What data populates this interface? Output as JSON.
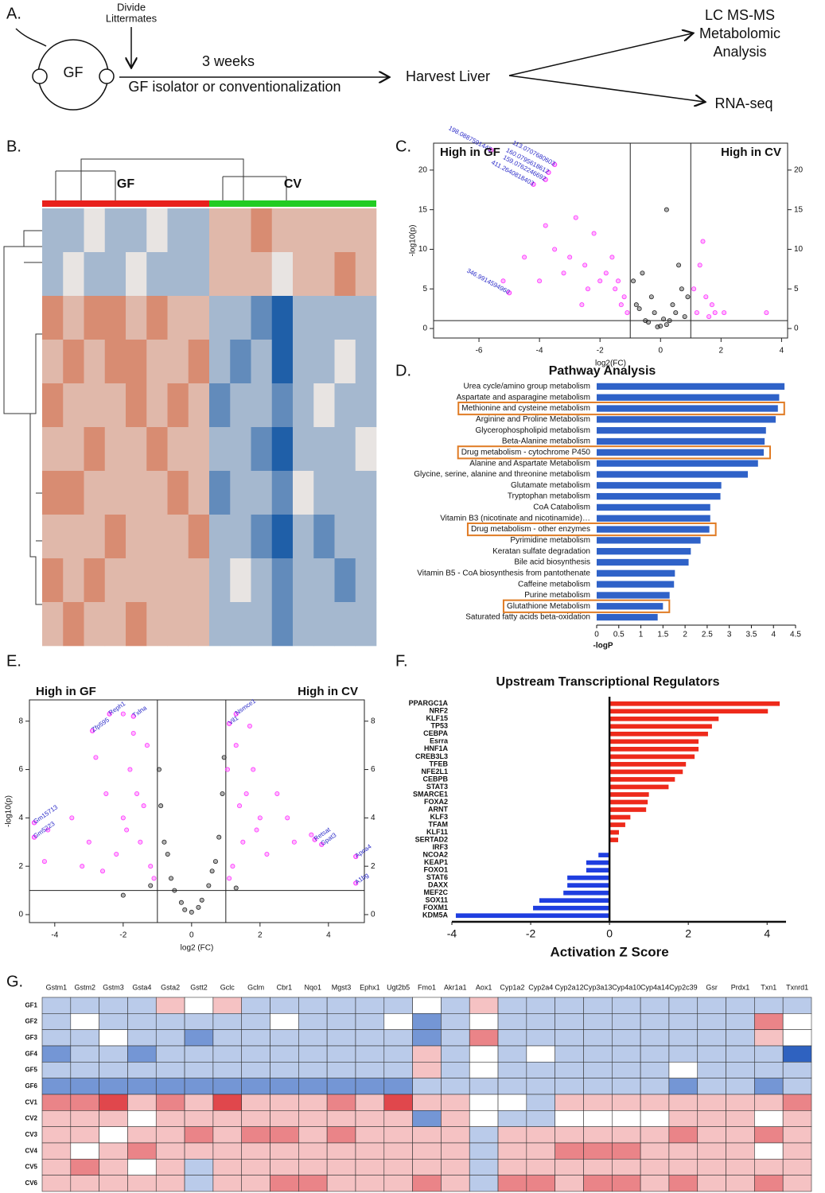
{
  "panel_labels": [
    "A.",
    "B.",
    "C.",
    "D.",
    "E.",
    "F.",
    "G."
  ],
  "diagram": {
    "divide": "Divide",
    "littermates": "Littermates",
    "mouse": "GF",
    "duration": "3 weeks",
    "treatment": "GF isolator or conventionalization",
    "harvest": "Harvest Liver",
    "metabolomics": [
      "LC MS-MS",
      "Metabolomic",
      "Analysis"
    ],
    "rnaseq": "RNA-seq"
  },
  "chart_data": [
    {
      "type": "heatmap",
      "colorscale": {
        "low": "#1f5fa8",
        "mid": "#e8e4e2",
        "high": "#d0603a"
      },
      "vlim": [
        -3,
        3
      ],
      "groups": [
        {
          "name": "GF",
          "color": "#e8201c",
          "values": [
            [
              -1,
              -1,
              0,
              -1,
              -1,
              0,
              -1,
              -1
            ],
            [
              -1,
              0,
              -1,
              -1,
              0,
              -1,
              -1,
              -1
            ],
            [
              2,
              1,
              2,
              2,
              1,
              2,
              1,
              1
            ],
            [
              1,
              2,
              1,
              2,
              2,
              1,
              1,
              2
            ],
            [
              2,
              1,
              1,
              1,
              2,
              1,
              2,
              1
            ],
            [
              1,
              1,
              2,
              1,
              1,
              2,
              1,
              1
            ],
            [
              2,
              2,
              1,
              1,
              1,
              1,
              2,
              1
            ],
            [
              1,
              1,
              1,
              2,
              1,
              1,
              1,
              2
            ],
            [
              2,
              1,
              2,
              1,
              1,
              1,
              1,
              1
            ],
            [
              1,
              2,
              1,
              1,
              2,
              1,
              1,
              1
            ]
          ]
        },
        {
          "name": "CV",
          "color": "#22cc22",
          "values": [
            [
              1,
              1,
              2,
              1,
              1,
              1,
              1,
              1
            ],
            [
              1,
              1,
              1,
              0,
              1,
              1,
              2,
              1
            ],
            [
              -1,
              -1,
              -2,
              -3,
              -1,
              -1,
              -1,
              -1
            ],
            [
              -1,
              -2,
              -1,
              -3,
              -1,
              -1,
              0,
              -1
            ],
            [
              -2,
              -1,
              -1,
              -2,
              -1,
              0,
              -1,
              -1
            ],
            [
              -1,
              -1,
              -2,
              -3,
              -1,
              -1,
              -1,
              0
            ],
            [
              -2,
              -1,
              -1,
              -2,
              0,
              -1,
              -1,
              -1
            ],
            [
              -1,
              -1,
              -2,
              -3,
              -1,
              -2,
              -1,
              -1
            ],
            [
              -1,
              0,
              -1,
              -2,
              -1,
              -1,
              -2,
              -1
            ],
            [
              -1,
              -1,
              -1,
              -2,
              -1,
              -1,
              -1,
              -1
            ]
          ]
        }
      ]
    },
    {
      "type": "scatter",
      "annotations": {
        "left": "High in GF",
        "right": "High in CV"
      },
      "xlabel": "log2(FC)",
      "ylabel": "-log10(p)",
      "xlim": [
        -7.5,
        4.2
      ],
      "ylim": [
        -1.2,
        23.4
      ],
      "xticks": [
        -6,
        -4,
        -2,
        0,
        2,
        4
      ],
      "yticks": [
        0,
        5,
        10,
        15,
        20
      ],
      "mirror_y_ticks": true,
      "vlines": [
        -1,
        1
      ],
      "hline": 1,
      "label_color": "#2a2ac8",
      "series": [
        {
          "color": "#ff33ff",
          "x": [
            -2.5,
            -2,
            -1.5,
            -3,
            -1.2,
            -2.2,
            -3.5,
            -1.8,
            -4,
            -2.8,
            -1.3,
            -1.6,
            -2.4,
            -3.2,
            -1.1,
            -5.2,
            -4.5,
            -3.8,
            -1.4,
            -2.6,
            1.2,
            1.5,
            1.8,
            2.1,
            1.3,
            1.1,
            1.6,
            3.5,
            1.4,
            1.7
          ],
          "y": [
            8,
            6,
            5,
            9,
            4,
            12,
            10,
            7,
            6,
            14,
            3,
            9,
            5,
            7,
            2,
            6,
            9,
            13,
            6,
            3,
            2,
            4,
            2,
            2,
            8,
            5,
            1.5,
            2,
            11,
            3
          ]
        },
        {
          "color": "#222222",
          "x": [
            -0.5,
            0,
            0.3,
            -0.8,
            0.5,
            -0.3,
            0.7,
            -0.6,
            0.2,
            -0.2,
            0.8,
            -0.9,
            0.4,
            -0.4,
            0.6,
            -0.7,
            0.1,
            -0.1,
            0.9,
            0.2
          ],
          "y": [
            1,
            0.3,
            1,
            3,
            2,
            4,
            5,
            7,
            0.5,
            2,
            1.5,
            6,
            3,
            0.8,
            8,
            2.5,
            1.2,
            0.2,
            4,
            15
          ]
        }
      ],
      "labels": [
        {
          "text": "198.0887591445",
          "x": -5.6,
          "y": 22.5
        },
        {
          "text": "113.0707680603",
          "x": -3.5,
          "y": 20.7
        },
        {
          "text": "160.0795618612",
          "x": -3.7,
          "y": 19.7
        },
        {
          "text": "159.0762246692",
          "x": -3.8,
          "y": 18.8
        },
        {
          "text": "411.2640818403",
          "x": -4.2,
          "y": 18.2
        },
        {
          "text": "346.9914594960",
          "x": -5,
          "y": 4.5
        }
      ]
    },
    {
      "type": "bar",
      "title": "Pathway Analysis",
      "xlabel": "-logP",
      "color": "#2f62c8",
      "xlim": [
        0,
        4.5
      ],
      "xticks": [
        0,
        0.5,
        1,
        1.5,
        2,
        2.5,
        3,
        3.5,
        4,
        4.5
      ],
      "highlight_color": "#e07b24",
      "categories": [
        "Urea cycle/amino group metabolism",
        "Aspartate and asparagine metabolism",
        "Methionine and cysteine metabolism",
        "Arginine and Proline Metabolism",
        "Glycerophospholipid metabolism",
        "Beta-Alanine metabolism",
        "Drug metabolism - cytochrome P450",
        "Alanine and Aspartate Metabolism",
        "Glycine, serine, alanine and threonine metabolism",
        "Glutamate metabolism",
        "Tryptophan metabolism",
        "CoA Catabolism",
        "Vitamin B3 (nicotinate and nicotinamide)…",
        "Drug metabolism - other enzymes",
        "Pyrimidine metabolism",
        "Keratan sulfate degradation",
        "Bile acid biosynthesis",
        "Vitamin B5 - CoA biosynthesis from pantothenate",
        "Caffeine metabolism",
        "Purine metabolism",
        "Glutathione Metabolism",
        "Saturated fatty acids beta-oxidation"
      ],
      "values": [
        4.25,
        4.13,
        4.1,
        4.05,
        3.83,
        3.8,
        3.78,
        3.65,
        3.42,
        2.82,
        2.8,
        2.57,
        2.57,
        2.55,
        2.35,
        2.13,
        2.08,
        1.77,
        1.75,
        1.65,
        1.5,
        1.38
      ],
      "highlighted": [
        false,
        false,
        true,
        false,
        false,
        false,
        true,
        false,
        false,
        false,
        false,
        false,
        false,
        true,
        false,
        false,
        false,
        false,
        false,
        false,
        true,
        false
      ]
    },
    {
      "type": "scatter",
      "annotations": {
        "left": "High in GF",
        "right": "High in CV"
      },
      "xlabel": "log2 (FC)",
      "ylabel": "-log10(p)",
      "xlim": [
        -4.74,
        5.05
      ],
      "ylim": [
        -0.33,
        8.88
      ],
      "xticks": [
        -4,
        -2,
        0,
        2,
        4
      ],
      "yticks": [
        0,
        2,
        4,
        6,
        8
      ],
      "mirror_y_ticks": true,
      "vlines": [
        -1,
        1
      ],
      "hline": 1,
      "label_color": "#2a2ac8",
      "series": [
        {
          "color": "#ff33ff",
          "x": [
            -1.5,
            -2,
            -1.2,
            -2.5,
            -1.8,
            -3,
            -1.3,
            -2.2,
            -3.5,
            -1.6,
            -2.8,
            -1.1,
            -4.2,
            -2,
            -1.4,
            -3.2,
            -1.9,
            -2.6,
            -1.7,
            -4.3,
            1.5,
            2,
            1.2,
            2.5,
            1.8,
            3,
            1.3,
            2.2,
            3.5,
            1.6,
            1.1,
            1.7,
            1.4,
            2.8,
            1.9,
            1.05
          ],
          "y": [
            3,
            4,
            2,
            5,
            6,
            3,
            7,
            2.5,
            4,
            5,
            6.5,
            1.5,
            3.5,
            8.3,
            4.5,
            2,
            3.5,
            1.8,
            7.5,
            2.2,
            3,
            4,
            2,
            5,
            6,
            3,
            7,
            2.5,
            3.3,
            5,
            1.5,
            7.8,
            4.5,
            4,
            3.5,
            6
          ]
        },
        {
          "color": "#222222",
          "x": [
            0,
            -0.3,
            0.3,
            -0.6,
            0.6,
            -0.8,
            0.8,
            -0.9,
            0.9,
            -0.5,
            0.5,
            -0.7,
            0.7,
            -0.95,
            0.95,
            0.2,
            -0.2,
            -1.2,
            1.3,
            -2
          ],
          "y": [
            0.1,
            0.5,
            0.6,
            1.5,
            1.8,
            3,
            3.2,
            4.5,
            5,
            1,
            1.2,
            2.5,
            2.2,
            6,
            6.5,
            0.3,
            0.2,
            1.2,
            1.1,
            0.8
          ]
        }
      ],
      "labels": [
        {
          "text": "Reph1",
          "x": -2.4,
          "y": 8.3
        },
        {
          "text": "Txlna",
          "x": -1.7,
          "y": 8.2
        },
        {
          "text": "Zfp595",
          "x": -2.9,
          "y": 7.6
        },
        {
          "text": "Vil1",
          "x": 1.1,
          "y": 7.9
        },
        {
          "text": "Nsmce1",
          "x": 1.3,
          "y": 8.3
        },
        {
          "text": "Gm15713",
          "x": -4.6,
          "y": 3.8
        },
        {
          "text": "Gm5223",
          "x": -4.6,
          "y": 3.2
        },
        {
          "text": "Retsat",
          "x": 3.6,
          "y": 3.1
        },
        {
          "text": "Gpat3",
          "x": 3.8,
          "y": 2.9
        },
        {
          "text": "Apoa4",
          "x": 4.8,
          "y": 2.4
        },
        {
          "text": "A1bg",
          "x": 4.8,
          "y": 1.3
        }
      ]
    },
    {
      "type": "bar",
      "title": "Upstream Transcriptional Regulators",
      "xlabel": "Activation Z Score",
      "positive_color": "#ee2a1b",
      "negative_color": "#1f3ee0",
      "zero_line": true,
      "xlim": [
        -4,
        4.48
      ],
      "xticks": [
        -4,
        -2,
        0,
        2,
        4
      ],
      "categories": [
        "PPARGC1A",
        "NRF2",
        "KLF15",
        "TP53",
        "CEBPA",
        "Esrra",
        "HNF1A",
        "CREB3L3",
        "TFEB",
        "NFE2L1",
        "CEBPB",
        "STAT3",
        "SMARCE1",
        "FOXA2",
        "ARNT",
        "KLF3",
        "TFAM",
        "KLF11",
        "SERTAD2",
        "IRF3",
        "NCOA2",
        "KEAP1",
        "FOXO1",
        "STAT6",
        "DAXX",
        "MEF2C",
        "SOX11",
        "FOXM1",
        "KDM5A"
      ],
      "values": [
        4.32,
        4.02,
        2.77,
        2.6,
        2.5,
        2.26,
        2.26,
        2.16,
        1.94,
        1.86,
        1.66,
        1.5,
        1.0,
        0.97,
        0.93,
        0.53,
        0.4,
        0.24,
        0.22,
        0,
        -0.28,
        -0.59,
        -0.59,
        -1.07,
        -1.07,
        -1.17,
        -1.78,
        -1.94,
        -3.9
      ]
    },
    {
      "type": "heatmap",
      "colorscale": {
        "low": "#2f62c0",
        "mid": "#ffffff",
        "high": "#e0474c"
      },
      "vlim": [
        -3,
        3
      ],
      "column_labels": [
        "Gstm1",
        "Gstm2",
        "Gstm3",
        "Gsta4",
        "Gsta2",
        "Gstt2",
        "Gclc",
        "Gclm",
        "Cbr1",
        "Nqo1",
        "Mgst3",
        "Ephx1",
        "Ugt2b5",
        "Fmo1",
        "Akr1a1",
        "Aox1",
        "Cyp1a2",
        "Cyp2a4",
        "Cyp2a12",
        "Cyp3a13",
        "Cyp4a10",
        "Cyp4a14",
        "Cyp2c39",
        "Gsr",
        "Prdx1",
        "Txn1",
        "Txnrd1"
      ],
      "row_labels": [
        "GF1",
        "GF2",
        "GF3",
        "GF4",
        "GF5",
        "GF6",
        "CV1",
        "CV2",
        "CV3",
        "CV4",
        "CV5",
        "CV6"
      ],
      "values": [
        [
          -1,
          -1,
          -1,
          -1,
          1,
          0,
          1,
          -1,
          -1,
          -1,
          -1,
          -1,
          -1,
          0,
          -1,
          1,
          -1,
          -1,
          -1,
          -1,
          -1,
          -1,
          -1,
          -1,
          -1,
          -1,
          -1
        ],
        [
          -1,
          0,
          -1,
          -1,
          -1,
          -1,
          -1,
          -1,
          0,
          -1,
          -1,
          -1,
          0,
          -2,
          -1,
          0,
          -1,
          -1,
          -1,
          -1,
          -1,
          -1,
          -1,
          -1,
          -1,
          2,
          0
        ],
        [
          -1,
          -1,
          0,
          -1,
          -1,
          -2,
          -1,
          -1,
          -1,
          -1,
          -1,
          -1,
          -1,
          -2,
          -1,
          2,
          -1,
          -1,
          -1,
          -1,
          -1,
          -1,
          -1,
          -1,
          -1,
          1,
          0
        ],
        [
          -2,
          -1,
          -1,
          -2,
          -1,
          -1,
          -1,
          -1,
          -1,
          -1,
          -1,
          -1,
          -1,
          1,
          -1,
          0,
          -1,
          0,
          -1,
          -1,
          -1,
          -1,
          -1,
          -1,
          -1,
          -1,
          -3
        ],
        [
          -1,
          -1,
          -1,
          -1,
          -1,
          -1,
          -1,
          -1,
          -1,
          -1,
          -1,
          -1,
          -1,
          1,
          -1,
          0,
          -1,
          -1,
          -1,
          -1,
          -1,
          -1,
          0,
          -1,
          -1,
          -1,
          -1
        ],
        [
          -2,
          -2,
          -2,
          -2,
          -2,
          -2,
          -2,
          -2,
          -2,
          -2,
          -2,
          -2,
          -2,
          -1,
          -1,
          -1,
          -1,
          -1,
          -1,
          -1,
          -1,
          -1,
          -2,
          -1,
          -1,
          -2,
          -1
        ],
        [
          2,
          2,
          3,
          1,
          2,
          1,
          3,
          1,
          1,
          1,
          2,
          1,
          3,
          1,
          1,
          0,
          0,
          -1,
          1,
          1,
          1,
          1,
          1,
          1,
          1,
          1,
          2
        ],
        [
          1,
          1,
          1,
          0,
          1,
          1,
          1,
          1,
          1,
          1,
          1,
          1,
          1,
          -2,
          1,
          0,
          -1,
          -1,
          0,
          0,
          0,
          0,
          1,
          1,
          1,
          0,
          1
        ],
        [
          1,
          1,
          0,
          1,
          1,
          2,
          1,
          2,
          2,
          1,
          2,
          1,
          1,
          1,
          1,
          -1,
          1,
          1,
          1,
          1,
          1,
          1,
          2,
          1,
          1,
          2,
          1
        ],
        [
          1,
          0,
          1,
          2,
          1,
          1,
          1,
          1,
          1,
          1,
          1,
          1,
          1,
          1,
          1,
          -1,
          1,
          1,
          2,
          2,
          2,
          1,
          1,
          1,
          1,
          0,
          1
        ],
        [
          1,
          2,
          1,
          0,
          1,
          -1,
          1,
          1,
          1,
          1,
          1,
          1,
          1,
          1,
          1,
          -1,
          1,
          1,
          1,
          1,
          1,
          1,
          1,
          1,
          1,
          1,
          1
        ],
        [
          1,
          1,
          1,
          1,
          1,
          -1,
          1,
          1,
          2,
          2,
          1,
          1,
          1,
          2,
          1,
          -1,
          2,
          2,
          1,
          2,
          2,
          1,
          2,
          1,
          1,
          2,
          1
        ]
      ]
    }
  ]
}
